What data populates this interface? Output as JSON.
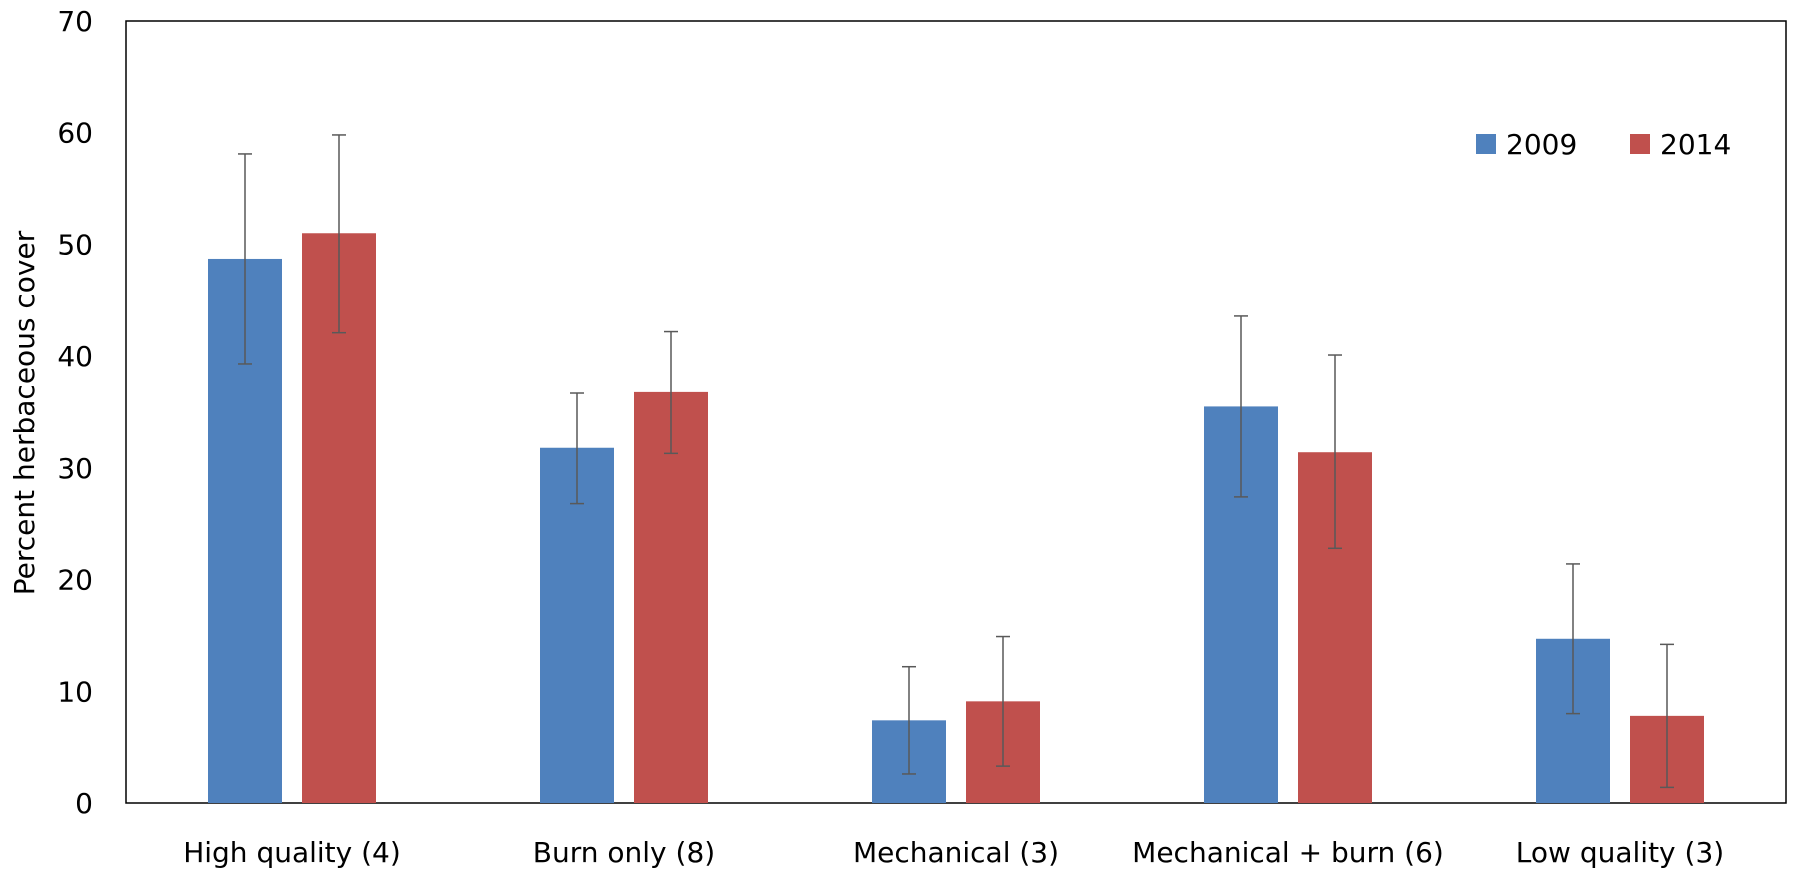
{
  "chart_data": {
    "type": "bar",
    "title": "",
    "xlabel": "",
    "ylabel": "Percent herbaceous cover",
    "ylim": [
      0,
      70
    ],
    "yticks": [
      0,
      10,
      20,
      30,
      40,
      50,
      60,
      70
    ],
    "grid": false,
    "legend_position": "top-right",
    "categories": [
      "High quality (4)",
      "Burn only (8)",
      "Mechanical (3)",
      "Mechanical + burn (6)",
      "Low quality (3)"
    ],
    "series": [
      {
        "name": "2009",
        "color": "#4F81BD",
        "values": [
          48.7,
          31.8,
          7.4,
          35.5,
          14.7
        ],
        "error_low": [
          39.3,
          26.8,
          2.6,
          27.4,
          8.0
        ],
        "error_high": [
          58.1,
          36.7,
          12.2,
          43.6,
          21.4
        ]
      },
      {
        "name": "2014",
        "color": "#C0504D",
        "values": [
          51.0,
          36.8,
          9.1,
          31.4,
          7.8
        ],
        "error_low": [
          42.1,
          31.3,
          3.3,
          22.8,
          1.4
        ],
        "error_high": [
          59.8,
          42.2,
          14.9,
          40.1,
          14.2
        ]
      }
    ]
  }
}
